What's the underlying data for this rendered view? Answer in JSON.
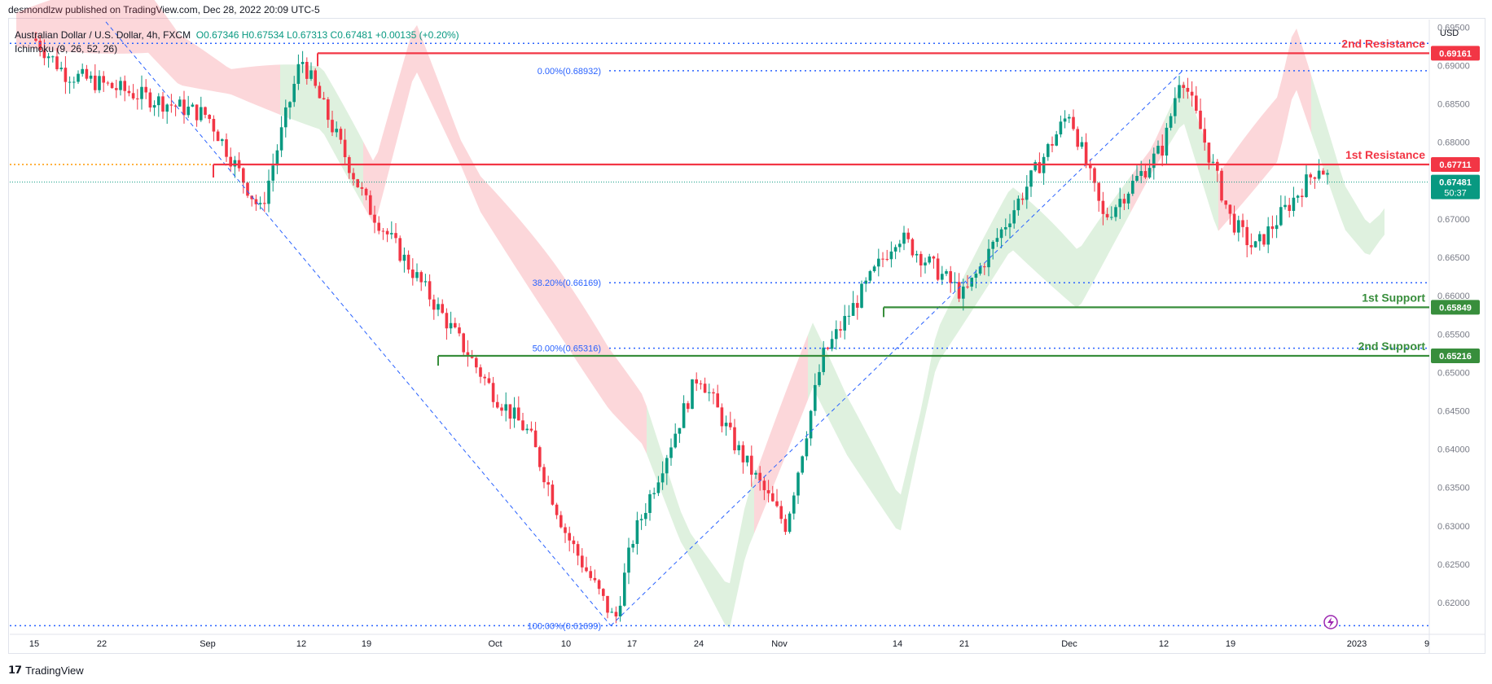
{
  "header": {
    "published_by": "desmondlzw published on TradingView.com, Dec 28, 2022 20:09 UTC-5"
  },
  "legend": {
    "symbol": "Australian Dollar / U.S. Dollar, 4h, FXCM",
    "ohlc": "O0.67346 H0.67534 L0.67313 C0.67481 +0.00135 (+0.20%)",
    "indicator": "Ichimoku (9, 26, 52, 26)"
  },
  "axis": {
    "currency": "USD"
  },
  "brand": {
    "name": "TradingView"
  },
  "chart_data": {
    "type": "candlestick",
    "symbol": "AUDUSD",
    "timeframe": "4h",
    "ylim": [
      0.6165,
      0.696
    ],
    "y_ticks": [
      "0.69500",
      "0.69000",
      "0.68500",
      "0.68000",
      "0.67500",
      "0.67000",
      "0.66500",
      "0.66000",
      "0.65500",
      "0.65000",
      "0.64500",
      "0.64000",
      "0.63500",
      "0.63000",
      "0.62500",
      "0.62000"
    ],
    "x_ticks": [
      "15",
      "22",
      "Sep",
      "12",
      "19",
      "Oct",
      "10",
      "17",
      "24",
      "Nov",
      "14",
      "21",
      "Dec",
      "12",
      "19",
      "2023",
      "9"
    ],
    "levels": [
      {
        "label": "2nd Resistance",
        "price": "0.69161",
        "value": 0.69161,
        "color": "#f23645",
        "start_tick": "12"
      },
      {
        "label": "1st Resistance",
        "price": "0.67711",
        "value": 0.67711,
        "color": "#f23645",
        "start_tick": "Sep"
      },
      {
        "label": "1st Support",
        "price": "0.65849",
        "value": 0.65849,
        "color": "#388e3c",
        "start_tick": "Nov"
      },
      {
        "label": "2nd Support",
        "price": "0.65216",
        "value": 0.65216,
        "color": "#388e3c",
        "start_tick": "19"
      }
    ],
    "current_price": {
      "price": "0.67481",
      "value": 0.67481,
      "countdown": "50:37",
      "color": "#089981"
    },
    "fibonacci": [
      {
        "label": "0.00%(0.68932)",
        "value": 0.68932
      },
      {
        "label": "38.20%(0.66169)",
        "value": 0.66169
      },
      {
        "label": "50.00%(0.65316)",
        "value": 0.65316
      },
      {
        "label": "100.00%(0.61699)",
        "value": 0.61699
      }
    ],
    "price_path": [
      {
        "t": "15",
        "v": 0.6935
      },
      {
        "t": "22",
        "v": 0.689
      },
      {
        "t": "Sep",
        "v": 0.6835
      },
      {
        "t": "Sep+1w",
        "v": 0.671
      },
      {
        "t": "12",
        "v": 0.691
      },
      {
        "t": "19",
        "v": 0.672
      },
      {
        "t": "Sep end",
        "v": 0.658
      },
      {
        "t": "Oct",
        "v": 0.647
      },
      {
        "t": "Oct+1w",
        "v": 0.642
      },
      {
        "t": "10",
        "v": 0.629
      },
      {
        "t": "17",
        "v": 0.6175
      },
      {
        "t": "24",
        "v": 0.628
      },
      {
        "t": "Oct end",
        "v": 0.65
      },
      {
        "t": "Nov",
        "v": 0.641
      },
      {
        "t": "Nov+1w",
        "v": 0.63
      },
      {
        "t": "Nov+10d",
        "v": 0.652
      },
      {
        "t": "14",
        "v": 0.668
      },
      {
        "t": "21",
        "v": 0.66
      },
      {
        "t": "Nov end",
        "v": 0.676
      },
      {
        "t": "Dec",
        "v": 0.684
      },
      {
        "t": "Dec+1w",
        "v": 0.67
      },
      {
        "t": "12",
        "v": 0.6795
      },
      {
        "t": "Dec 13",
        "v": 0.6893
      },
      {
        "t": "19",
        "v": 0.67
      },
      {
        "t": "Dec 22",
        "v": 0.666
      },
      {
        "t": "Dec 27",
        "v": 0.677
      },
      {
        "t": "Dec 28",
        "v": 0.67481
      }
    ]
  }
}
